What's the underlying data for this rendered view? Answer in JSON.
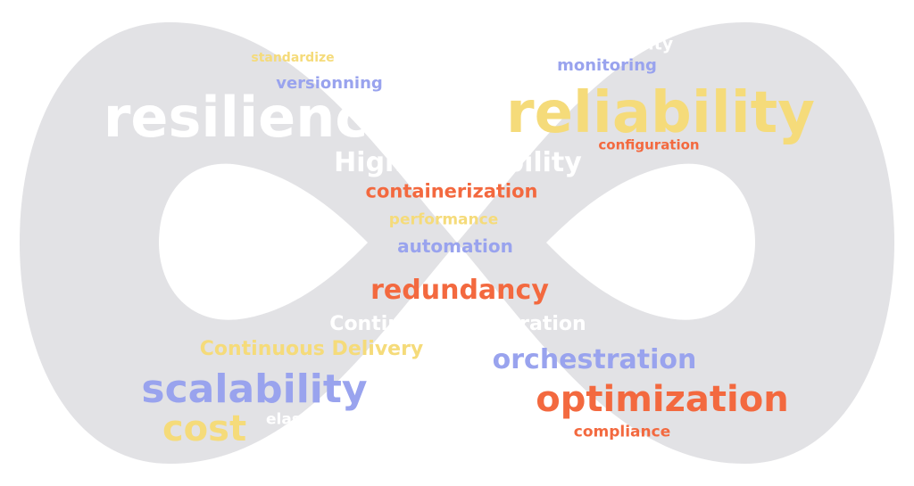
{
  "colors": {
    "background": "#ffffff",
    "shape": "#e2e2e5",
    "white": "#ffffff",
    "yellow": "#f5db7a",
    "blue": "#99a3ee",
    "orange": "#f3693f"
  },
  "shape": "infinity",
  "words": {
    "resilience": "resilience",
    "reliability": "reliability",
    "high_availability": "High Availability",
    "containerization": "containerization",
    "performance": "performance",
    "automation": "automation",
    "redundancy": "redundancy",
    "continuous_integration": "Continuous Integration",
    "continuous_delivery": "Continuous Delivery",
    "orchestration": "orchestration",
    "scalability": "scalability",
    "optimization": "optimization",
    "cost": "cost",
    "elasticity": "elasticity",
    "compliance": "compliance",
    "security": "security",
    "monitoring": "monitoring",
    "standardize": "standardize",
    "versionning": "versionning",
    "configuration": "configuration"
  },
  "word_colors": {
    "resilience": "white",
    "reliability": "yellow",
    "high_availability": "white",
    "containerization": "orange",
    "performance": "yellow",
    "automation": "blue",
    "redundancy": "orange",
    "continuous_integration": "white",
    "continuous_delivery": "yellow",
    "orchestration": "blue",
    "scalability": "blue",
    "optimization": "orange",
    "cost": "yellow",
    "elasticity": "white",
    "compliance": "orange",
    "security": "white",
    "monitoring": "blue",
    "standardize": "yellow",
    "versionning": "blue",
    "configuration": "orange"
  }
}
